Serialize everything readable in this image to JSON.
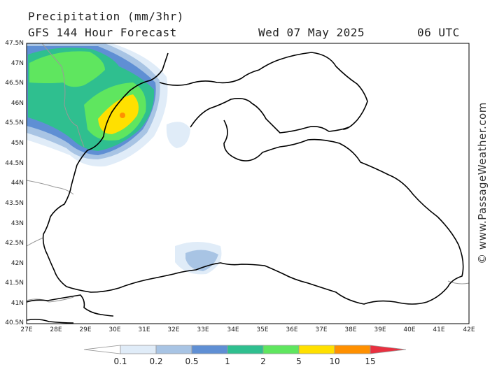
{
  "header": {
    "title": "Precipitation (mm/3hr)",
    "subtitle": "GFS 144 Hour Forecast",
    "date": "Wed 07 May 2025",
    "time": "06 UTC"
  },
  "map": {
    "region": "Black Sea",
    "lat_labels": [
      "47.5N",
      "47N",
      "46.5N",
      "46N",
      "45.5N",
      "45N",
      "44.5N",
      "44N",
      "43.5N",
      "43N",
      "42.5N",
      "42N",
      "41.5N",
      "41N",
      "40.5N"
    ],
    "lon_labels": [
      "27E",
      "28E",
      "29E",
      "30E",
      "31E",
      "32E",
      "33E",
      "34E",
      "35E",
      "36E",
      "37E",
      "38E",
      "39E",
      "40E",
      "41E",
      "42E"
    ],
    "lat_range": [
      40.5,
      47.5
    ],
    "lon_range": [
      27,
      42
    ],
    "land_color": "#ffffff",
    "coast_color": "#000000",
    "border_color": "#999999"
  },
  "legend": {
    "labels": [
      "0.1",
      "0.2",
      "0.5",
      "1",
      "2",
      "5",
      "10",
      "15"
    ],
    "colors": [
      "#ffffff",
      "#e0ecf8",
      "#a8c4e4",
      "#5f8fd4",
      "#2fbf8f",
      "#5fe65f",
      "#ffe000",
      "#ff9000",
      "#e83040"
    ]
  },
  "credit": "© www.PassageWeather.com"
}
